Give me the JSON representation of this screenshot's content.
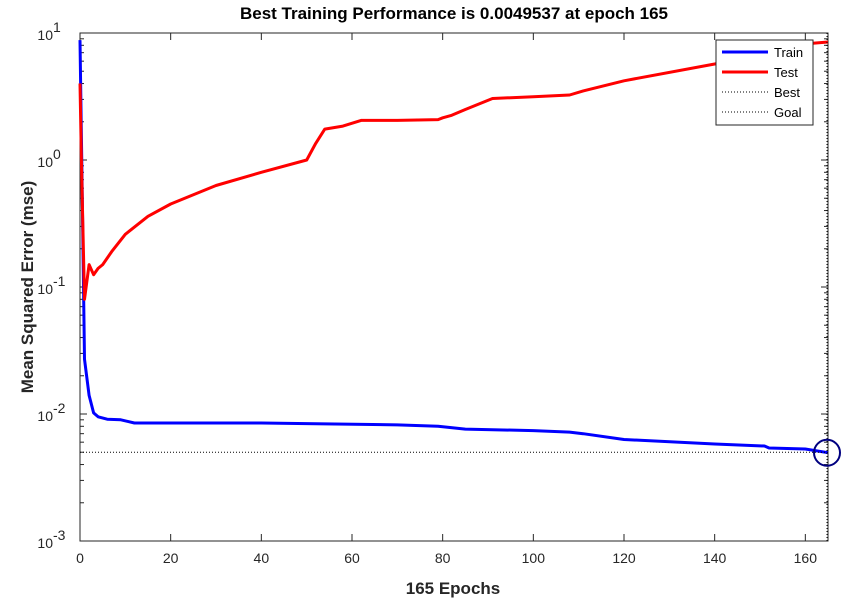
{
  "chart_data": {
    "type": "line",
    "title": "Best Training Performance is 0.0049537 at epoch 165",
    "xlabel": "165 Epochs",
    "ylabel": "Mean Squared Error  (mse)",
    "xlim": [
      0,
      165
    ],
    "ylim": [
      0.001,
      10
    ],
    "yscale": "log",
    "grid": false,
    "legend_position": "top-right",
    "x_ticks": [
      "0",
      "20",
      "40",
      "60",
      "80",
      "100",
      "120",
      "140",
      "160"
    ],
    "y_ticks": [
      {
        "base": "10",
        "exp": "1"
      },
      {
        "base": "10",
        "exp": "0"
      },
      {
        "base": "10",
        "exp": "-1"
      },
      {
        "base": "10",
        "exp": "-2"
      },
      {
        "base": "10",
        "exp": "-3"
      }
    ],
    "series": [
      {
        "name": "Train",
        "color": "#0000ff",
        "style": "solid",
        "x": [
          0,
          0.5,
          1,
          2,
          3,
          4,
          6,
          9,
          12,
          20,
          40,
          50,
          70,
          79,
          85,
          100,
          108,
          111,
          120,
          140,
          151,
          152,
          160,
          165
        ],
        "y": [
          8.8,
          0.5,
          0.027,
          0.014,
          0.0102,
          0.0095,
          0.0091,
          0.009,
          0.0085,
          0.0085,
          0.0085,
          0.0084,
          0.0082,
          0.008,
          0.0076,
          0.0074,
          0.0072,
          0.007,
          0.0063,
          0.0058,
          0.0056,
          0.0054,
          0.0053,
          0.0049537
        ]
      },
      {
        "name": "Test",
        "color": "#ff0000",
        "style": "solid",
        "x": [
          0,
          0.3,
          1,
          2,
          3,
          4,
          5,
          7,
          10,
          15,
          20,
          30,
          40,
          50,
          52,
          54,
          58,
          62,
          70,
          79,
          80,
          82,
          85,
          91,
          100,
          108,
          111,
          120,
          140,
          150,
          160,
          165
        ],
        "y": [
          4.0,
          1.0,
          0.08,
          0.15,
          0.125,
          0.14,
          0.15,
          0.19,
          0.26,
          0.36,
          0.45,
          0.63,
          0.8,
          1.0,
          1.35,
          1.75,
          1.85,
          2.05,
          2.05,
          2.08,
          2.15,
          2.25,
          2.5,
          3.05,
          3.15,
          3.25,
          3.5,
          4.2,
          5.7,
          6.8,
          8.2,
          8.5
        ]
      },
      {
        "name": "Best",
        "color": "#000000",
        "style": "dotted",
        "vertical_x": 165
      },
      {
        "name": "Goal",
        "color": "#000000",
        "style": "dotted",
        "horizontal_y": 0.005
      }
    ],
    "best_marker": {
      "x": 165,
      "y": 0.0049537
    }
  }
}
